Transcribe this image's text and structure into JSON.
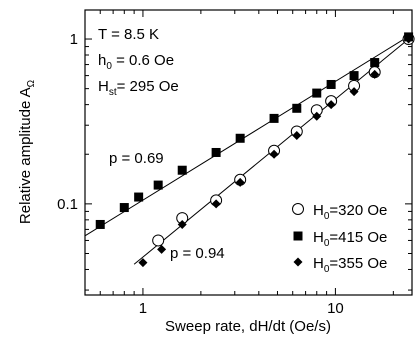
{
  "chart_data": {
    "type": "scatter",
    "x_scale": "log",
    "y_scale": "log",
    "xlim": [
      0.5,
      25
    ],
    "ylim": [
      0.028,
      1.5
    ],
    "xlabel": "Sweep rate, dH/dt (Oe/s)",
    "ylabel_main": "Relative amplitude A",
    "ylabel_sub": "Ω",
    "x_ticks": [
      {
        "v": 1,
        "label": "1"
      },
      {
        "v": 10,
        "label": "10"
      }
    ],
    "y_ticks": [
      {
        "v": 0.1,
        "label": "0.1"
      },
      {
        "v": 1,
        "label": "1"
      }
    ],
    "params": [
      {
        "main": "T",
        "sub": "",
        "rest": "  =  8.5 K"
      },
      {
        "main": "h",
        "sub": "0",
        "rest": "  =  0.6 Oe"
      },
      {
        "main": "H",
        "sub": "st",
        "rest": "=  295 Oe"
      }
    ],
    "annotations": [
      {
        "id": "p-upper",
        "text": "p  =  0.69"
      },
      {
        "id": "p-lower",
        "text": "p  =  0.94"
      }
    ],
    "series": [
      {
        "name_main": "H",
        "name_sub": "0",
        "name_rest": "=320 Oe",
        "marker": "open-circle",
        "x": [
          1.2,
          1.6,
          2.4,
          3.2,
          4.8,
          6.3,
          8.0,
          9.5,
          12.5,
          16.0,
          24.0
        ],
        "y": [
          0.06,
          0.082,
          0.105,
          0.14,
          0.21,
          0.275,
          0.37,
          0.42,
          0.52,
          0.63,
          1.0
        ]
      },
      {
        "name_main": "H",
        "name_sub": "0",
        "name_rest": "=415 Oe",
        "marker": "filled-square",
        "x": [
          0.6,
          0.8,
          0.95,
          1.2,
          1.6,
          2.4,
          3.2,
          4.8,
          6.3,
          8.0,
          9.5,
          12.5,
          16.0,
          24.0
        ],
        "y": [
          0.075,
          0.095,
          0.11,
          0.13,
          0.16,
          0.205,
          0.25,
          0.33,
          0.38,
          0.47,
          0.53,
          0.6,
          0.72,
          1.03
        ]
      },
      {
        "name_main": "H",
        "name_sub": "0",
        "name_rest": "=355 Oe",
        "marker": "filled-diamond",
        "x": [
          1.0,
          1.25,
          1.6,
          2.4,
          3.2,
          4.8,
          6.3,
          8.0,
          9.5,
          12.5,
          16.0,
          24.0
        ],
        "y": [
          0.044,
          0.053,
          0.075,
          0.1,
          0.135,
          0.2,
          0.26,
          0.34,
          0.4,
          0.48,
          0.61,
          1.0
        ]
      }
    ],
    "fit_lines": [
      {
        "x": [
          0.5,
          25
        ],
        "y": [
          0.064,
          1.07
        ]
      },
      {
        "x": [
          0.9,
          25
        ],
        "y": [
          0.043,
          1.04
        ]
      }
    ]
  }
}
